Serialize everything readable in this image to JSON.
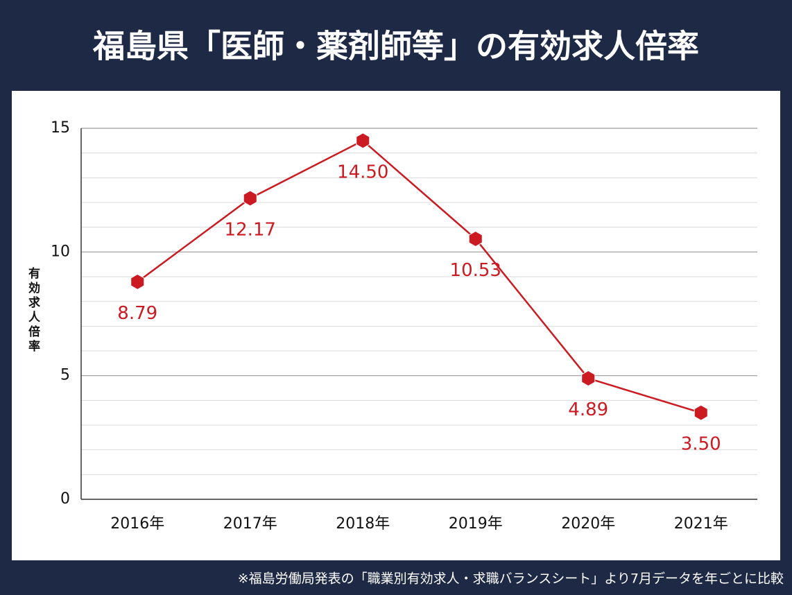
{
  "chart_data": {
    "type": "line",
    "title": "福島県「医師・薬剤師等」の有効求人倍率",
    "y_label": "有効求人倍率",
    "footnote": "※福島労働局発表の「職業別有効求人・求職バランスシート」より7月データを年ごとに比較",
    "categories": [
      "2016年",
      "2017年",
      "2018年",
      "2019年",
      "2020年",
      "2021年"
    ],
    "series": [
      {
        "name": "有効求人倍率",
        "color": "#cc1a22",
        "values": [
          8.79,
          12.17,
          14.5,
          10.53,
          4.89,
          3.5
        ],
        "value_labels": [
          "8.79",
          "12.17",
          "14.50",
          "10.53",
          "4.89",
          "3.50"
        ]
      }
    ],
    "ylim": [
      0,
      15
    ],
    "yticks": [
      0,
      5,
      10,
      15
    ],
    "minor_yticks": [
      1,
      2,
      3,
      4,
      6,
      7,
      8,
      9,
      11,
      12,
      13,
      14
    ],
    "grid": true
  }
}
